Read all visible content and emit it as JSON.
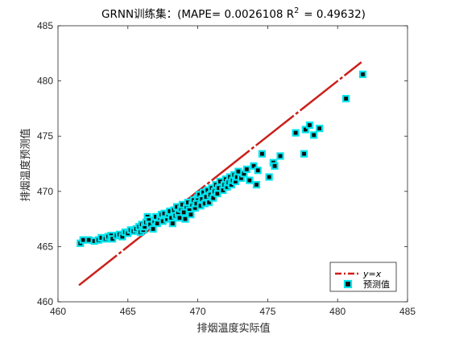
{
  "chart_data": {
    "type": "scatter",
    "title": "GRNN训练集：(MAPE= 0.0026108 R",
    "title_sup": "2",
    "title_tail": "= 0.49632)",
    "xlabel": "排烟温度实际值",
    "ylabel": "排烟温度预测值",
    "xlim": [
      460,
      485
    ],
    "ylim": [
      460,
      485
    ],
    "xticks": [
      460,
      465,
      470,
      475,
      480,
      485
    ],
    "yticks": [
      460,
      465,
      470,
      475,
      480,
      485
    ],
    "grid": false,
    "legend_position": "bottom-right",
    "reference_line": {
      "name": "y=x",
      "from": [
        461.5,
        461.5
      ],
      "to": [
        481.7,
        481.7
      ],
      "color": "#cc1f1a",
      "style": "dash-dot"
    },
    "series": [
      {
        "name": "预测值",
        "marker": "square",
        "marker_edge": "#00e5ee",
        "marker_face": "#111111",
        "points": [
          [
            461.6,
            465.3
          ],
          [
            461.8,
            465.6
          ],
          [
            462.2,
            465.6
          ],
          [
            462.6,
            465.5
          ],
          [
            462.9,
            465.6
          ],
          [
            463.1,
            465.8
          ],
          [
            463.4,
            465.7
          ],
          [
            463.6,
            465.9
          ],
          [
            463.8,
            466.0
          ],
          [
            463.9,
            465.7
          ],
          [
            464.2,
            466.0
          ],
          [
            464.4,
            466.1
          ],
          [
            464.6,
            465.9
          ],
          [
            464.8,
            466.3
          ],
          [
            465.0,
            466.2
          ],
          [
            465.2,
            466.5
          ],
          [
            465.4,
            466.4
          ],
          [
            465.6,
            466.6
          ],
          [
            465.8,
            466.8
          ],
          [
            465.9,
            466.3
          ],
          [
            466.0,
            467.0
          ],
          [
            466.1,
            466.5
          ],
          [
            466.2,
            466.8
          ],
          [
            466.3,
            467.2
          ],
          [
            466.4,
            467.7
          ],
          [
            466.5,
            467.4
          ],
          [
            466.6,
            467.0
          ],
          [
            466.8,
            466.6
          ],
          [
            466.9,
            467.3
          ],
          [
            467.0,
            467.7
          ],
          [
            467.1,
            467.1
          ],
          [
            467.3,
            467.6
          ],
          [
            467.4,
            467.9
          ],
          [
            467.5,
            467.3
          ],
          [
            467.6,
            468.0
          ],
          [
            467.8,
            467.5
          ],
          [
            467.9,
            467.9
          ],
          [
            468.0,
            468.2
          ],
          [
            468.1,
            467.6
          ],
          [
            468.2,
            467.1
          ],
          [
            468.3,
            468.3
          ],
          [
            468.4,
            467.8
          ],
          [
            468.5,
            468.6
          ],
          [
            468.6,
            468.0
          ],
          [
            468.7,
            467.6
          ],
          [
            468.8,
            468.4
          ],
          [
            468.9,
            468.8
          ],
          [
            469.0,
            468.1
          ],
          [
            469.1,
            467.5
          ],
          [
            469.2,
            468.6
          ],
          [
            469.3,
            469.0
          ],
          [
            469.4,
            468.3
          ],
          [
            469.5,
            467.9
          ],
          [
            469.6,
            468.8
          ],
          [
            469.7,
            469.2
          ],
          [
            469.8,
            468.5
          ],
          [
            469.9,
            468.9
          ],
          [
            470.0,
            469.4
          ],
          [
            470.1,
            469.7
          ],
          [
            470.2,
            468.7
          ],
          [
            470.3,
            469.3
          ],
          [
            470.4,
            469.9
          ],
          [
            470.5,
            468.9
          ],
          [
            470.6,
            469.5
          ],
          [
            470.7,
            470.1
          ],
          [
            470.8,
            469.0
          ],
          [
            470.9,
            469.7
          ],
          [
            471.0,
            470.3
          ],
          [
            471.1,
            469.4
          ],
          [
            471.2,
            470.0
          ],
          [
            471.3,
            470.6
          ],
          [
            471.4,
            469.8
          ],
          [
            471.5,
            470.3
          ],
          [
            471.6,
            470.9
          ],
          [
            471.8,
            470.1
          ],
          [
            471.9,
            470.6
          ],
          [
            472.0,
            471.1
          ],
          [
            472.1,
            470.4
          ],
          [
            472.2,
            470.8
          ],
          [
            472.3,
            471.3
          ],
          [
            472.4,
            470.6
          ],
          [
            472.5,
            471.0
          ],
          [
            472.6,
            471.5
          ],
          [
            472.7,
            470.9
          ],
          [
            472.8,
            471.3
          ],
          [
            472.9,
            471.8
          ],
          [
            473.1,
            471.2
          ],
          [
            473.3,
            471.6
          ],
          [
            473.5,
            472.0
          ],
          [
            473.7,
            471.0
          ],
          [
            474.0,
            472.3
          ],
          [
            474.2,
            470.6
          ],
          [
            474.3,
            471.9
          ],
          [
            474.6,
            473.4
          ],
          [
            475.1,
            471.3
          ],
          [
            475.4,
            472.6
          ],
          [
            475.5,
            472.3
          ],
          [
            475.9,
            473.2
          ],
          [
            477.0,
            475.3
          ],
          [
            477.6,
            473.4
          ],
          [
            477.7,
            475.6
          ],
          [
            478.0,
            476.0
          ],
          [
            478.3,
            475.1
          ],
          [
            478.7,
            475.7
          ],
          [
            480.6,
            478.4
          ],
          [
            481.8,
            480.6
          ]
        ]
      }
    ]
  }
}
